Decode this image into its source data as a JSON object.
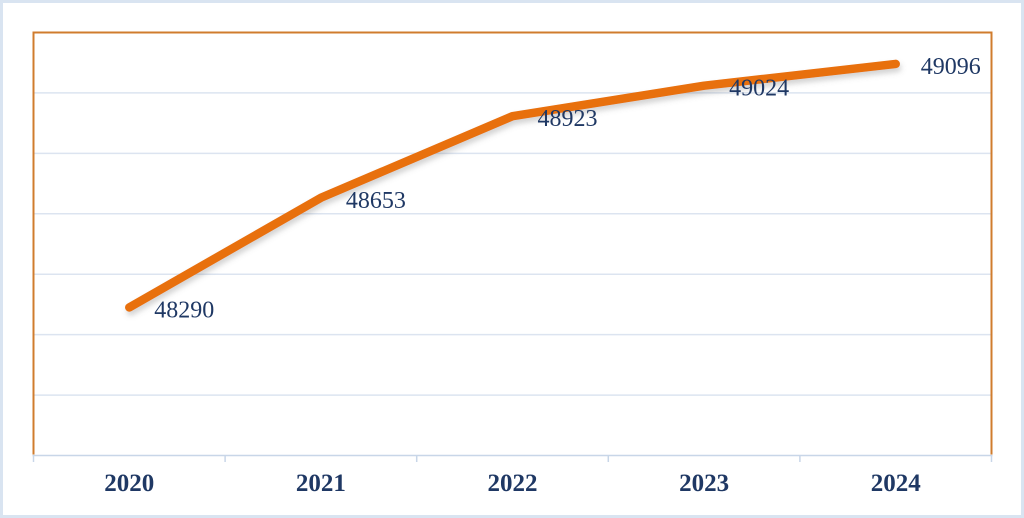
{
  "frame": {
    "border_color": "#d9e4f1",
    "background": "#ffffff"
  },
  "chart_data": {
    "type": "line",
    "categories": [
      "2020",
      "2021",
      "2022",
      "2023",
      "2024"
    ],
    "series": [
      {
        "name": "",
        "values": [
          48290,
          48653,
          48923,
          49024,
          49096
        ],
        "data_labels": [
          "48290",
          "48653",
          "48923",
          "49024",
          "49096"
        ],
        "color": "#e8700a"
      }
    ],
    "ylim": [
      47800,
      49200
    ],
    "gridline_step": 200,
    "grid": "horizontal",
    "legend": "none",
    "layout_hints": {
      "data_label_position": "right-of-point",
      "x_axis_tick_marks": "category-boundaries",
      "plot_border_sides": "left-top-right"
    },
    "colors": {
      "data_label": "#1f3864",
      "axis_label": "#1f3864",
      "gridline": "#dce4f0",
      "axis_line": "#c8d6e8",
      "tick": "#c8d6e8",
      "plot_border": "#d07c2e"
    }
  }
}
